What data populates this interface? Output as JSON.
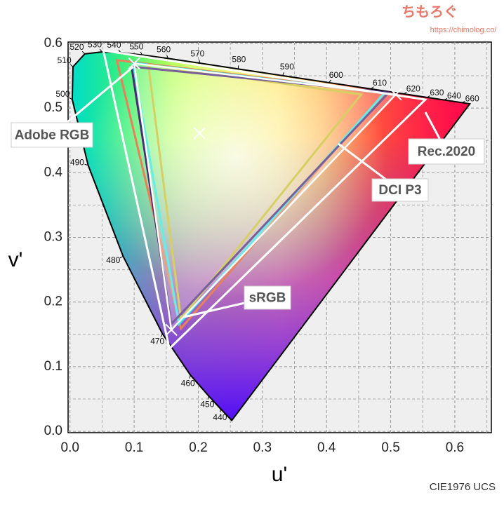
{
  "header": {
    "logo": "ちもろぐ",
    "url": "https://chimolog.co/"
  },
  "chart_data": {
    "type": "gamut",
    "x_label": "u'",
    "y_label": "v'",
    "footnote": "CIE1976 UCS",
    "xlim": [
      -0.003,
      0.657
    ],
    "ylim": [
      -0.002,
      0.602
    ],
    "xticks": [
      {
        "value": 0,
        "label": "0.0"
      },
      0.1,
      0.2,
      0.3,
      0.4,
      0.5,
      0.6
    ],
    "yticks": [
      {
        "value": 0,
        "label": "0.0"
      },
      0.1,
      0.2,
      0.3,
      0.4,
      0.5,
      0.6
    ],
    "xminor": [
      0.05,
      0.15,
      0.25,
      0.35,
      0.45,
      0.55,
      0.65
    ],
    "yminor": [
      0.05,
      0.15,
      0.25,
      0.35,
      0.45,
      0.55
    ],
    "grid": true,
    "locus": {
      "color": "#4a2070",
      "labels": [
        null,
        "440",
        "450",
        "460",
        "470",
        "480",
        "490",
        "500",
        "510",
        "520",
        "530",
        "540",
        "550",
        "560",
        "570",
        "580",
        "590",
        "600",
        "610",
        "620",
        "630",
        "640",
        "660",
        null
      ],
      "x": [
        0.2522,
        0.2347,
        0.216,
        0.1877,
        0.1441,
        0.0828,
        0.0282,
        0.0035,
        0.0046,
        0.0231,
        0.0501,
        0.0792,
        0.1127,
        0.1531,
        0.2026,
        0.2623,
        0.3315,
        0.4035,
        0.4692,
        0.5203,
        0.5565,
        0.583,
        0.6109,
        0.6234
      ],
      "values": [
        0.0169,
        0.035,
        0.055,
        0.0871,
        0.151,
        0.2708,
        0.4117,
        0.5131,
        0.5638,
        0.5837,
        0.5868,
        0.5856,
        0.5821,
        0.5766,
        0.5694,
        0.5604,
        0.5501,
        0.5393,
        0.5296,
        0.5219,
        0.5165,
        0.5125,
        0.5084,
        0.5065
      ]
    },
    "series": [
      {
        "name": "Adobe RGB",
        "color": "#e8805a",
        "x": [
          0.073,
          0.49,
          0.173
        ],
        "values": [
          0.574,
          0.524,
          0.159
        ]
      },
      {
        "name": "DCI P3",
        "color": "#30e8e0",
        "x": [
          0.098,
          0.49,
          0.17
        ],
        "values": [
          0.57,
          0.523,
          0.166
        ]
      },
      {
        "name": "sRGB",
        "color": "#c8c030",
        "x": [
          0.122,
          0.454,
          0.173
        ],
        "values": [
          0.567,
          0.521,
          0.174
        ]
      },
      {
        "color": "#4b2a7a",
        "x": [
          0.096,
          0.497,
          0.158
        ],
        "values": [
          0.564,
          0.524,
          0.166
        ]
      },
      {
        "name": "Rec.2020",
        "color": "#ffffff",
        "x": [
          0.052,
          0.554,
          0.155
        ],
        "values": [
          0.589,
          0.513,
          0.128
        ]
      },
      {
        "color": "#ffffff",
        "marker": "x",
        "x": [
          0.1,
          0.508,
          0.158
        ],
        "values": [
          0.569,
          0.521,
          0.157
        ]
      },
      {
        "color": "#ffffff",
        "marker": "x",
        "point": true,
        "x": [
          0.202
        ],
        "values": [
          0.461
        ]
      }
    ]
  }
}
